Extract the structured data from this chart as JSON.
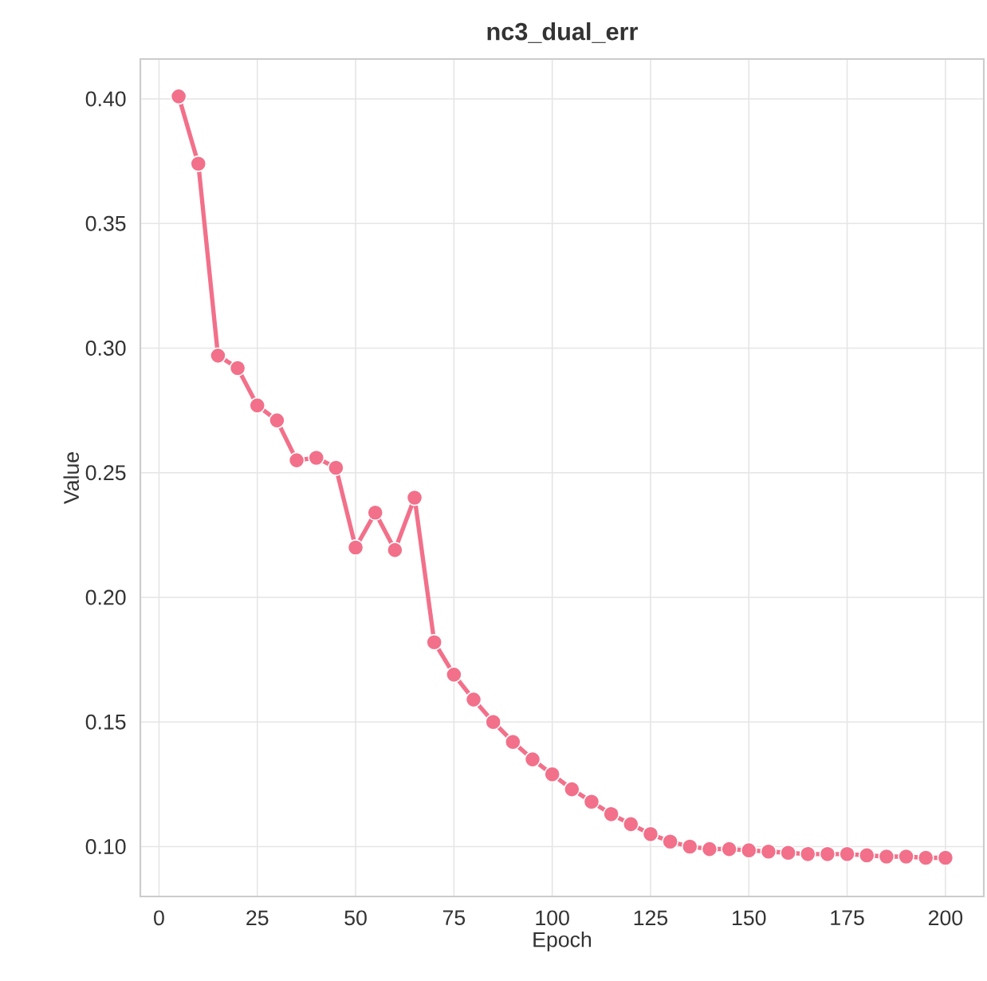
{
  "chart_data": {
    "type": "line",
    "title": "nc3_dual_err",
    "xlabel": "Epoch",
    "ylabel": "Value",
    "x": [
      5,
      10,
      15,
      20,
      25,
      30,
      35,
      40,
      45,
      50,
      55,
      60,
      65,
      70,
      75,
      80,
      85,
      90,
      95,
      100,
      105,
      110,
      115,
      120,
      125,
      130,
      135,
      140,
      145,
      150,
      155,
      160,
      165,
      170,
      175,
      180,
      185,
      190,
      195,
      200
    ],
    "series": [
      {
        "color": "#f2708a",
        "values": [
          0.401,
          0.374,
          0.297,
          0.292,
          0.277,
          0.271,
          0.255,
          0.256,
          0.252,
          0.22,
          0.234,
          0.219,
          0.24,
          0.182,
          0.169,
          0.159,
          0.15,
          0.142,
          0.135,
          0.129,
          0.123,
          0.118,
          0.113,
          0.109,
          0.105,
          0.102,
          0.1,
          0.099,
          0.099,
          0.0985,
          0.098,
          0.0975,
          0.097,
          0.097,
          0.097,
          0.0965,
          0.096,
          0.096,
          0.0955,
          0.0955
        ]
      }
    ],
    "xlim": [
      -4.75,
      209.75
    ],
    "ylim": [
      0.08,
      0.416
    ],
    "xticks": [
      0,
      25,
      50,
      75,
      100,
      125,
      150,
      175,
      200
    ],
    "yticks": [
      {
        "value": 0.1,
        "label": "0.10"
      },
      {
        "value": 0.15,
        "label": "0.15"
      },
      {
        "value": 0.2,
        "label": "0.20"
      },
      {
        "value": 0.25,
        "label": "0.25"
      },
      {
        "value": 0.3,
        "label": "0.30"
      },
      {
        "value": 0.35,
        "label": "0.35"
      },
      {
        "value": 0.4,
        "label": "0.40"
      }
    ],
    "grid": true,
    "marker": "circle",
    "line_style": "solid"
  }
}
